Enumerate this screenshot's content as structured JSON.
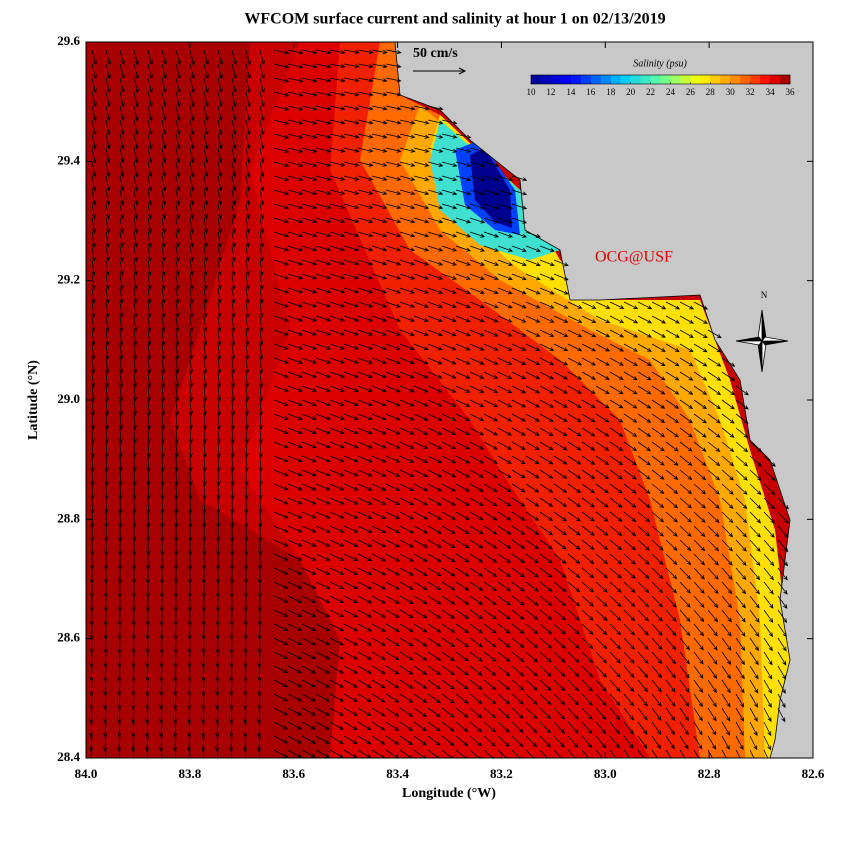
{
  "chart_data": {
    "type": "map",
    "title": "WFCOM surface current and salinity at hour 1 on 02/13/2019",
    "x_label": "Longitude (°W)",
    "y_label": "Latitude (°N)",
    "xlim": [
      84.0,
      82.6
    ],
    "xticks": [
      {
        "value": 84.0,
        "label": "84.0"
      },
      83.8,
      83.6,
      83.4,
      83.2,
      {
        "value": 83.0,
        "label": "83.0"
      },
      82.8,
      82.6
    ],
    "ylim": [
      28.4,
      29.6
    ],
    "yticks": [
      28.4,
      28.6,
      28.8,
      {
        "value": 29.0,
        "label": "29.0"
      },
      29.2,
      29.4,
      29.6
    ],
    "colorbar": {
      "label": "Salinity (psu)",
      "lim": [
        10,
        36
      ],
      "ticks": [
        10,
        12,
        14,
        16,
        18,
        20,
        22,
        24,
        26,
        28,
        30,
        32,
        34,
        36
      ]
    },
    "scale_label": "50 cm/s",
    "credit": "OCG@USF",
    "north_label": "N"
  }
}
